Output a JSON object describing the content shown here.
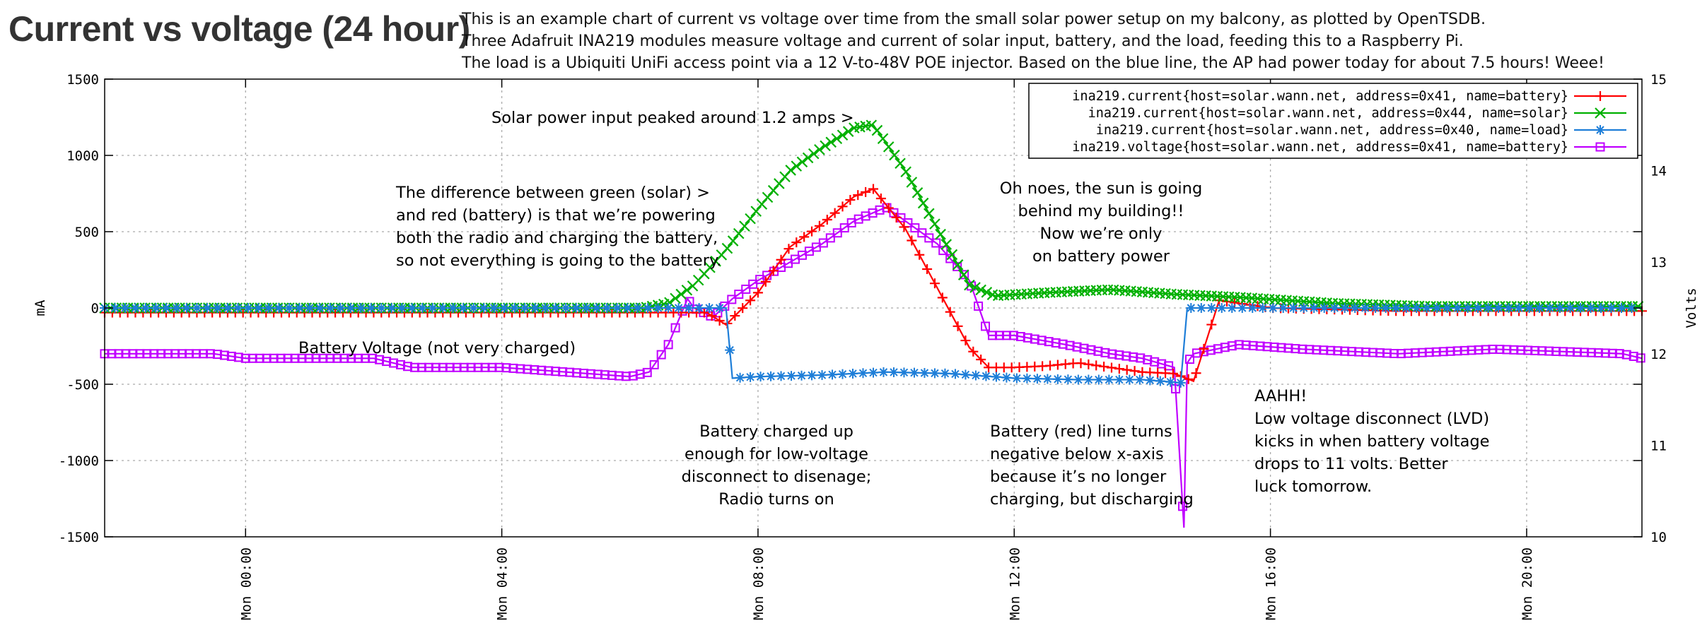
{
  "title": "Current vs voltage (24 hour)",
  "description": [
    "This is an example chart of current vs voltage over time from the small solar power setup on my balcony, as plotted by OpenTSDB.",
    "Three Adafruit INA219 modules measure voltage and current of solar input, battery, and the load, feeding this to a Raspberry Pi.",
    "The load is a Ubiquiti UniFi access point via a 12 V-to-48V POE injector. Based on the blue line, the AP had power today for about 7.5 hours! Weee!"
  ],
  "chart_data": {
    "type": "line",
    "ylabel": "mA",
    "y2label": "Volts",
    "ylim": [
      -1500,
      1500
    ],
    "y2lim": [
      10,
      15
    ],
    "xlim_hours": [
      -2.2,
      21.8
    ],
    "grid": true,
    "legend_position": "top-right",
    "y_ticks": [
      "1500",
      "1000",
      "500",
      "0",
      "-500",
      "-1000",
      "-1500"
    ],
    "y2_ticks": [
      "15",
      "14",
      "13",
      "12",
      "11",
      "10"
    ],
    "x_tick_hours": [
      0,
      4,
      8,
      12,
      16,
      20
    ],
    "x_ticks": [
      "Mon 00:00",
      "Mon 04:00",
      "Mon 08:00",
      "Mon 12:00",
      "Mon 16:00",
      "Mon 20:00"
    ],
    "series": [
      {
        "name": "ina219.current{host=solar.wann.net, address=0x41, name=battery}",
        "color": "#ff0000",
        "marker": "plus",
        "axis": "y",
        "x": [
          -2.2,
          6.0,
          7.2,
          7.5,
          8.0,
          8.5,
          9.0,
          9.5,
          9.8,
          10.3,
          10.8,
          11.3,
          11.6,
          12.0,
          12.5,
          13.0,
          13.5,
          14.0,
          14.5,
          14.8,
          15.2,
          16.0,
          18.0,
          21.8
        ],
        "y": [
          -30,
          -30,
          -30,
          -110,
          100,
          400,
          550,
          730,
          780,
          520,
          130,
          -260,
          -390,
          -390,
          -380,
          -360,
          -390,
          -420,
          -430,
          -480,
          50,
          0,
          -20,
          -20
        ]
      },
      {
        "name": "ina219.current{host=solar.wann.net, address=0x44, name=solar}",
        "color": "#00b000",
        "marker": "x",
        "axis": "y",
        "x": [
          -2.2,
          6.2,
          6.6,
          7.0,
          7.5,
          8.0,
          8.5,
          9.0,
          9.5,
          9.8,
          10.3,
          10.8,
          11.3,
          11.7,
          12.5,
          13.5,
          14.5,
          15.5,
          17.0,
          18.5,
          21.8
        ],
        "y": [
          0,
          0,
          30,
          150,
          380,
          650,
          900,
          1050,
          1180,
          1200,
          900,
          520,
          150,
          80,
          100,
          120,
          90,
          70,
          30,
          10,
          10
        ]
      },
      {
        "name": "ina219.current{host=solar.wann.net, address=0x40, name=load}",
        "color": "#1e7ed8",
        "marker": "star",
        "axis": "y",
        "x": [
          -2.2,
          7.5,
          7.6,
          8.0,
          9.0,
          10.0,
          11.0,
          12.0,
          13.0,
          14.0,
          14.6,
          14.7,
          14.8,
          21.8
        ],
        "y": [
          0,
          0,
          -460,
          -450,
          -440,
          -420,
          -430,
          -460,
          -470,
          -470,
          -490,
          0,
          0,
          0
        ]
      },
      {
        "name": "ina219.voltage{host=solar.wann.net, address=0x41, name=battery}",
        "color": "#c000ff",
        "marker": "square",
        "axis": "y2",
        "x": [
          -2.2,
          -0.5,
          0.0,
          2.0,
          2.6,
          4.0,
          6.0,
          6.3,
          6.6,
          6.9,
          7.0,
          7.3,
          7.6,
          8.0,
          8.5,
          9.0,
          9.5,
          10.0,
          10.3,
          10.8,
          11.3,
          11.6,
          12.0,
          12.8,
          13.5,
          14.0,
          14.5,
          14.65,
          14.7,
          14.8,
          15.5,
          16.5,
          18.0,
          19.5,
          21.5,
          21.8
        ],
        "y": [
          12.0,
          12.0,
          11.95,
          11.95,
          11.85,
          11.85,
          11.75,
          11.8,
          12.1,
          12.6,
          12.5,
          12.4,
          12.6,
          12.8,
          13.0,
          13.2,
          13.45,
          13.6,
          13.45,
          13.2,
          12.8,
          12.2,
          12.2,
          12.1,
          12.0,
          11.95,
          11.85,
          10.1,
          11.9,
          12.0,
          12.1,
          12.05,
          12.0,
          12.05,
          12.0,
          11.95
        ]
      }
    ],
    "annotations": [
      {
        "lines": [
          "Solar power input peaked around 1.2 amps >"
        ]
      },
      {
        "lines": [
          "The difference between green (solar)    >",
          "and red (battery) is that we’re powering",
          "both the radio and charging the battery,",
          "so not everything is going to the battery."
        ]
      },
      {
        "lines": [
          "Oh noes, the sun is going",
          "behind my building!!",
          "Now we’re only",
          "on battery power"
        ]
      },
      {
        "lines": [
          "Battery Voltage (not very charged)"
        ]
      },
      {
        "lines": [
          "Battery charged up",
          "enough for low-voltage",
          "disconnect to disenage;",
          "Radio turns on"
        ]
      },
      {
        "lines": [
          "Battery (red) line turns",
          "negative below x-axis",
          "because it’s no longer",
          "charging, but discharging"
        ]
      },
      {
        "lines": [
          "AAHH!",
          "Low voltage disconnect (LVD)",
          "kicks in when battery voltage",
          "drops to 11 volts. Better",
          "luck tomorrow."
        ]
      }
    ]
  }
}
